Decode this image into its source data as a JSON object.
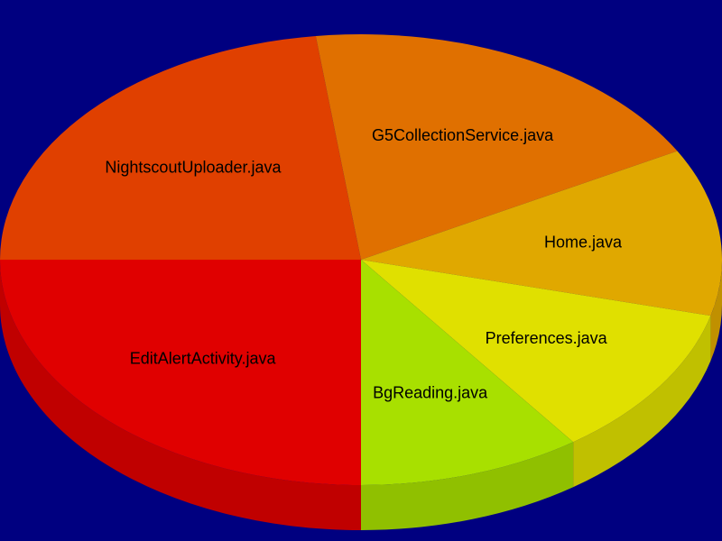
{
  "chart_data": {
    "type": "pie",
    "title": "",
    "slices": [
      {
        "label": "EditAlertActivity.java",
        "value": 25.0,
        "color": "#e00000",
        "side": "#c00000"
      },
      {
        "label": "NightscoutUploader.java",
        "value": 23.0,
        "color": "#e04000",
        "side": "#c03400"
      },
      {
        "label": "G5CollectionService.java",
        "value": 19.0,
        "color": "#e07000",
        "side": "#c06000"
      },
      {
        "label": "Home.java",
        "value": 12.0,
        "color": "#e0a800",
        "side": "#c09000"
      },
      {
        "label": "Preferences.java",
        "value": 11.0,
        "color": "#e0e000",
        "side": "#c0c000"
      },
      {
        "label": "BgReading.java",
        "value": 10.0,
        "color": "#a8e000",
        "side": "#90c000"
      }
    ]
  }
}
